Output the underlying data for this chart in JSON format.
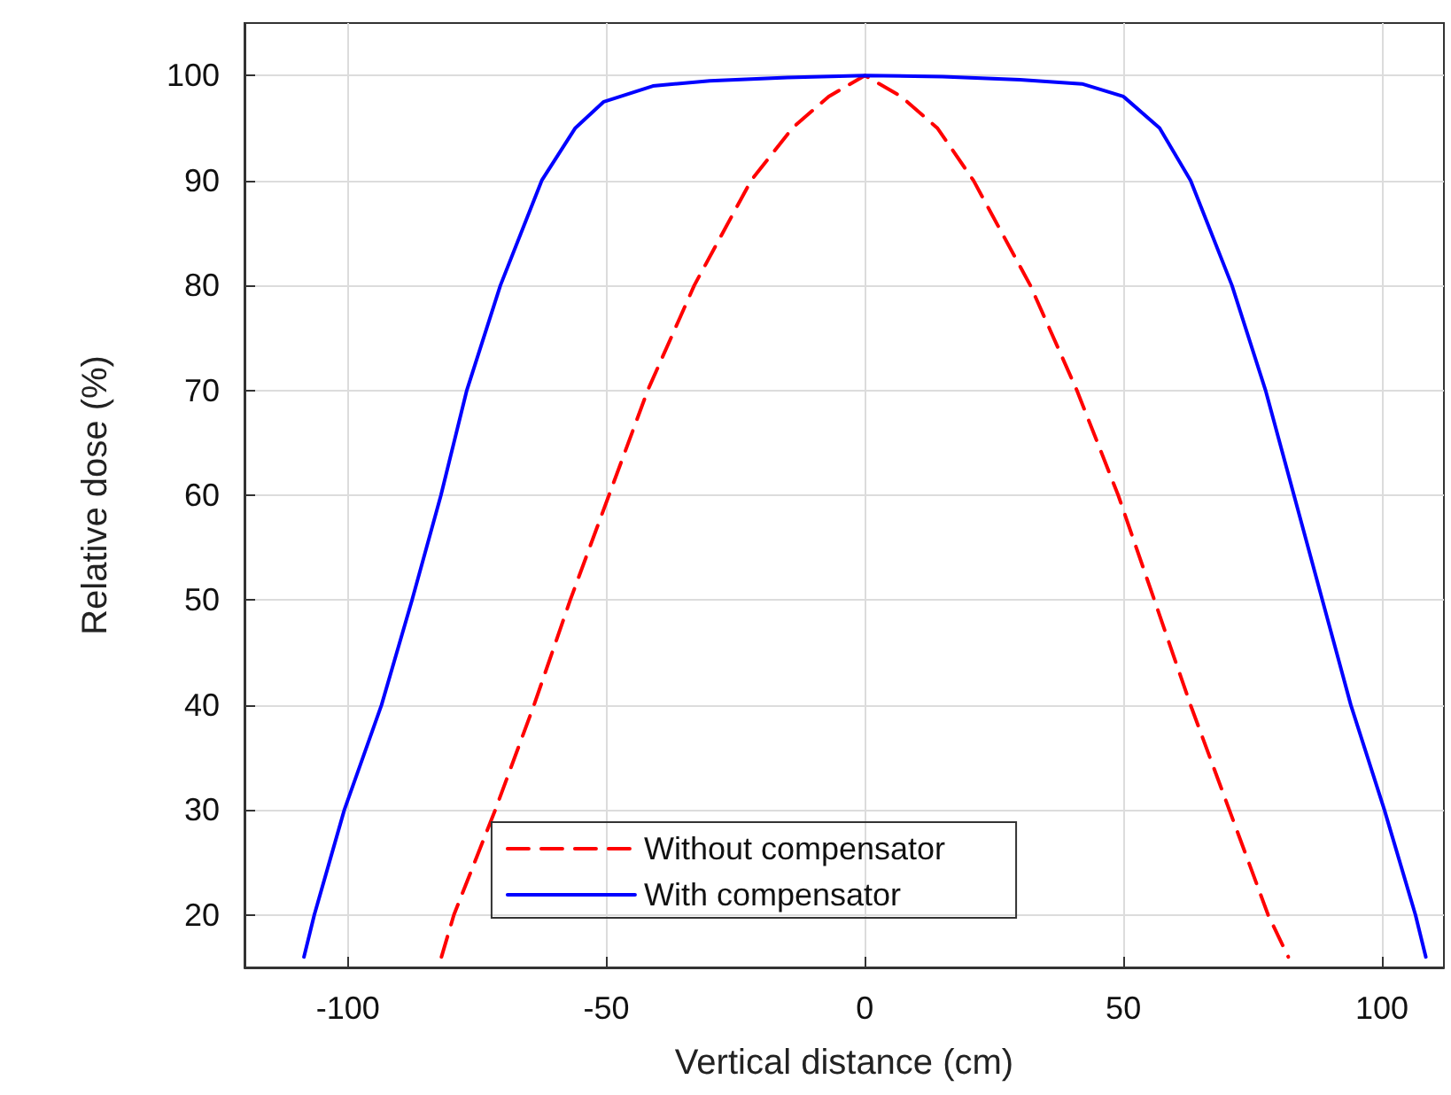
{
  "chart_data": {
    "type": "line",
    "xlabel": "Vertical distance (cm)",
    "ylabel": "Relative dose (%)",
    "xlim": [
      -120,
      112
    ],
    "ylim": [
      15,
      105
    ],
    "xticks": [
      -100,
      -50,
      0,
      50,
      100
    ],
    "yticks": [
      20,
      30,
      40,
      50,
      60,
      70,
      80,
      90,
      100
    ],
    "grid": true,
    "legend": "bottom",
    "marker": "none",
    "series": [
      {
        "name": "Without compensator",
        "color": "#ff0000",
        "line_style": "dashed",
        "x": [
          -81.9,
          -79.5,
          -71.5,
          -64,
          -57,
          -49.5,
          -42,
          -33,
          -22,
          -14,
          -7,
          0,
          7,
          14,
          21,
          32,
          41,
          49,
          56,
          63,
          70.5,
          78,
          81.9
        ],
        "values": [
          16,
          20,
          30,
          40,
          50,
          60,
          70,
          80,
          90,
          95,
          98,
          100,
          98,
          95,
          90,
          80,
          70,
          60,
          50,
          40,
          30,
          20,
          16
        ]
      },
      {
        "name": "With compensator",
        "color": "#0000ff",
        "line_style": "solid",
        "x": [
          -108.5,
          -106.5,
          -100.7,
          -93.5,
          -87.6,
          -82,
          -77,
          -70.5,
          -62.5,
          -56,
          -50.5,
          -41,
          -30,
          -15,
          0,
          15,
          30,
          42,
          50,
          57,
          63,
          71,
          77.5,
          83,
          88.5,
          94,
          100.5,
          106.5,
          108.5
        ],
        "values": [
          16,
          20,
          30,
          40,
          50,
          60,
          70,
          80,
          90,
          95,
          97.5,
          99,
          99.5,
          99.8,
          100,
          99.9,
          99.6,
          99.2,
          98,
          95,
          90,
          80,
          70,
          60,
          50,
          40,
          30,
          20,
          16
        ]
      }
    ]
  }
}
